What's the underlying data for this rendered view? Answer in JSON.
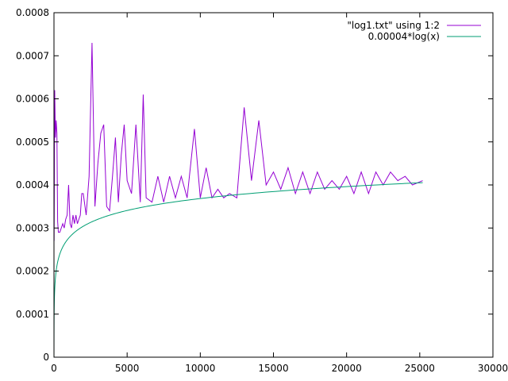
{
  "chart_data": {
    "type": "line",
    "title": "",
    "xlabel": "",
    "ylabel": "",
    "xlim": [
      0,
      30000
    ],
    "ylim": [
      0,
      0.0008
    ],
    "x_ticks": [
      0,
      5000,
      10000,
      15000,
      20000,
      25000,
      30000
    ],
    "x_tick_labels": [
      "0",
      "5000",
      "10000",
      "15000",
      "20000",
      "25000",
      "30000"
    ],
    "y_ticks": [
      0,
      0.0001,
      0.0002,
      0.0003,
      0.0004,
      0.0005,
      0.0006,
      0.0007,
      0.0008
    ],
    "y_tick_labels": [
      "0",
      "0.0001",
      "0.0002",
      "0.0003",
      "0.0004",
      "0.0005",
      "0.0006",
      "0.0007",
      "0.0008"
    ],
    "grid": false,
    "legend_position": "top-right",
    "series": [
      {
        "name": "\"log1.txt\" using 1:2",
        "color": "#9400d3",
        "x": [
          10,
          50,
          100,
          150,
          200,
          250,
          300,
          400,
          500,
          600,
          700,
          800,
          900,
          1000,
          1100,
          1200,
          1300,
          1400,
          1500,
          1600,
          1700,
          1800,
          1900,
          2000,
          2200,
          2400,
          2600,
          2800,
          3000,
          3200,
          3400,
          3600,
          3800,
          4000,
          4200,
          4400,
          4600,
          4800,
          5000,
          5300,
          5600,
          5900,
          6100,
          6300,
          6700,
          7100,
          7500,
          7900,
          8300,
          8700,
          9100,
          9600,
          10000,
          10400,
          10800,
          11200,
          11600,
          12000,
          12500,
          13000,
          13500,
          14000,
          14500,
          15000,
          15500,
          16000,
          16500,
          17000,
          17500,
          18000,
          18500,
          19000,
          19500,
          20000,
          20500,
          21000,
          21500,
          22000,
          22500,
          23000,
          23500,
          24000,
          24500,
          25200
        ],
        "y": [
          0.00027,
          0.00062,
          0.00051,
          0.00055,
          0.00052,
          0.000315,
          0.00029,
          0.00029,
          0.0003,
          0.00031,
          0.0003,
          0.00032,
          0.00033,
          0.0004,
          0.00031,
          0.0003,
          0.00033,
          0.00031,
          0.00033,
          0.00031,
          0.00032,
          0.00033,
          0.00038,
          0.00038,
          0.00033,
          0.00042,
          0.00073,
          0.00035,
          0.00045,
          0.00052,
          0.00054,
          0.00035,
          0.00034,
          0.00042,
          0.00051,
          0.00036,
          0.00047,
          0.00054,
          0.00041,
          0.00038,
          0.00054,
          0.00036,
          0.00061,
          0.00037,
          0.00036,
          0.00042,
          0.00036,
          0.00042,
          0.00037,
          0.00042,
          0.00037,
          0.00053,
          0.00037,
          0.00044,
          0.00037,
          0.00039,
          0.00037,
          0.00038,
          0.00037,
          0.00058,
          0.00041,
          0.00055,
          0.0004,
          0.00043,
          0.00039,
          0.00044,
          0.00038,
          0.00043,
          0.00038,
          0.00043,
          0.00039,
          0.00041,
          0.00039,
          0.00042,
          0.00038,
          0.00043,
          0.00038,
          0.00043,
          0.0004,
          0.00043,
          0.00041,
          0.00042,
          0.0004,
          0.00041
        ],
        "_note": ""
      },
      {
        "name": "0.00004*log(x)",
        "color": "#009e73",
        "function": "0.00004*log(x)",
        "x_range": [
          1,
          25200
        ]
      }
    ]
  }
}
